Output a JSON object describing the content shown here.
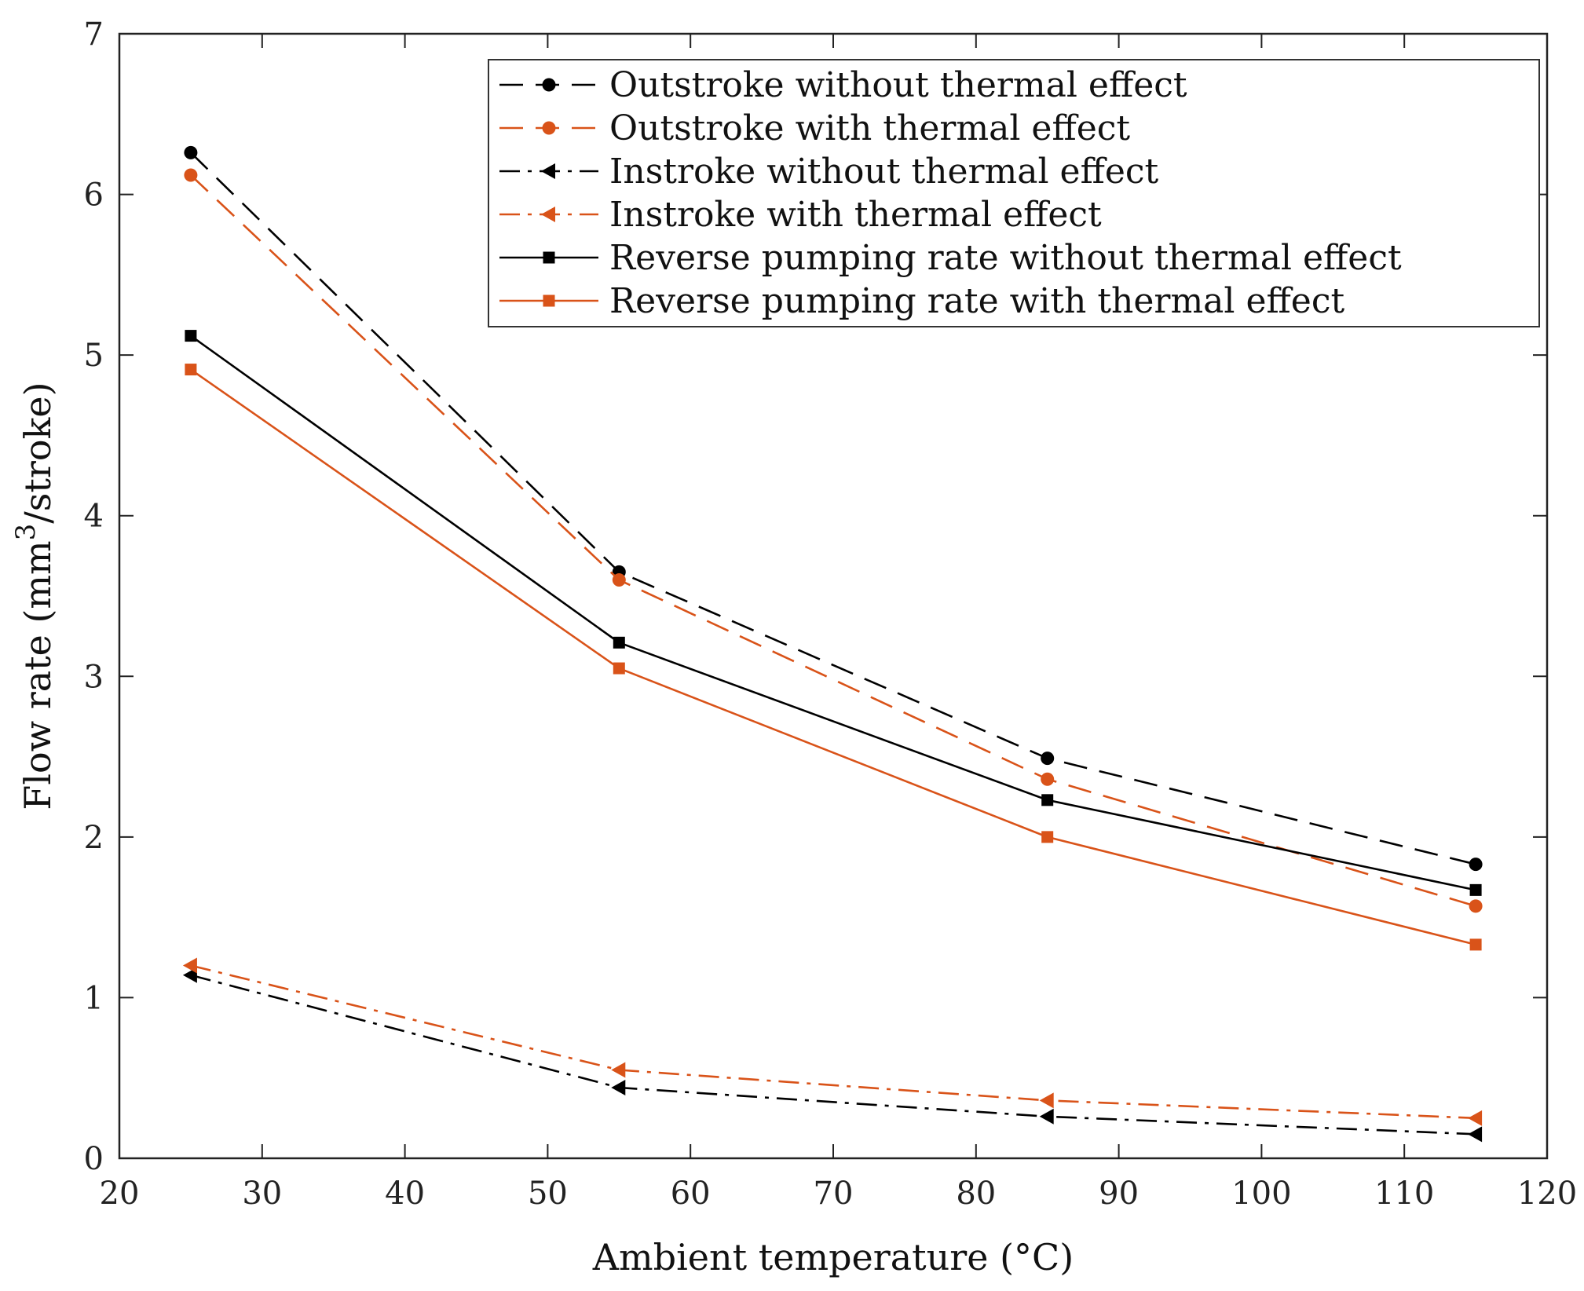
{
  "chart_data": {
    "type": "line",
    "title": "",
    "xlabel": "Ambient temperature (°C)",
    "ylabel_main": "Flow rate (mm",
    "ylabel_sup": "3",
    "ylabel_tail": "/stroke)",
    "xlim": [
      20,
      120
    ],
    "ylim": [
      0,
      7
    ],
    "xticks": [
      20,
      30,
      40,
      50,
      60,
      70,
      80,
      90,
      100,
      110,
      120
    ],
    "yticks": [
      0,
      1,
      2,
      3,
      4,
      5,
      6,
      7
    ],
    "legend_position": "top-right",
    "grid": false,
    "x": [
      25,
      55,
      85,
      115
    ],
    "series": [
      {
        "name": "Outstroke without thermal effect",
        "values": [
          6.26,
          3.65,
          2.49,
          1.83
        ],
        "color": "#000000",
        "dash": "dashed",
        "marker": "circle"
      },
      {
        "name": "Outstroke with thermal effect",
        "values": [
          6.12,
          3.6,
          2.36,
          1.57
        ],
        "color": "#d95319",
        "dash": "dashed",
        "marker": "circle"
      },
      {
        "name": "Instroke without thermal effect",
        "values": [
          1.14,
          0.44,
          0.26,
          0.15
        ],
        "color": "#000000",
        "dash": "dashdot",
        "marker": "triangle-left"
      },
      {
        "name": "Instroke with thermal effect",
        "values": [
          1.2,
          0.55,
          0.36,
          0.25
        ],
        "color": "#d95319",
        "dash": "dashdot",
        "marker": "triangle-left"
      },
      {
        "name": "Reverse pumping rate without thermal effect",
        "values": [
          5.12,
          3.21,
          2.23,
          1.67
        ],
        "color": "#000000",
        "dash": "solid",
        "marker": "square"
      },
      {
        "name": "Reverse pumping rate  with thermal effect",
        "values": [
          4.91,
          3.05,
          2.0,
          1.33
        ],
        "color": "#d95319",
        "dash": "solid",
        "marker": "square"
      }
    ]
  }
}
